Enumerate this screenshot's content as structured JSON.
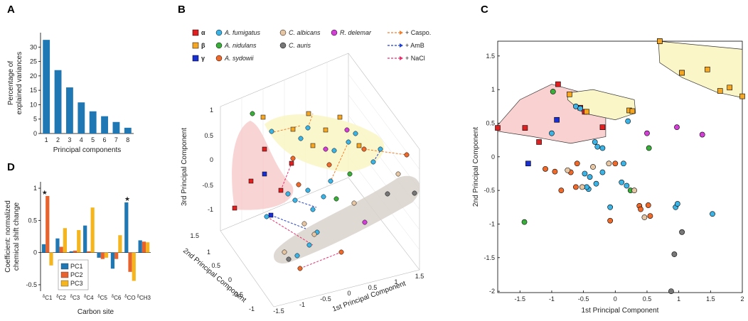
{
  "chart_data": [
    {
      "panel": "A",
      "type": "bar",
      "categories": [
        "1",
        "2",
        "3",
        "4",
        "5",
        "6",
        "7",
        "8"
      ],
      "values": [
        32.5,
        22,
        16,
        10.8,
        7.7,
        6,
        4,
        2
      ],
      "xlabel": "Principal components",
      "ylabel": [
        "Percentage of",
        "explained variances"
      ],
      "ylim": [
        0,
        35
      ],
      "yticks": [
        0,
        5,
        10,
        15,
        20,
        25,
        30
      ],
      "color": "#1f77b4"
    },
    {
      "panel": "D",
      "type": "bar",
      "categories": [
        "δC1",
        "δC2",
        "δC3",
        "δC4",
        "δC5",
        "δC6",
        "δCO",
        "δCH3"
      ],
      "category_labels": [
        [
          "δ",
          "C1"
        ],
        [
          "δ",
          "C2"
        ],
        [
          "δ",
          "C3"
        ],
        [
          "δ",
          "C4"
        ],
        [
          "δ",
          "C5"
        ],
        [
          "δ",
          "C6"
        ],
        [
          "δ",
          "CO"
        ],
        [
          "δ",
          "CH3"
        ]
      ],
      "series": [
        {
          "name": "PC1",
          "color": "#1f77b4",
          "values": [
            0.13,
            0.22,
            0.02,
            0.42,
            -0.08,
            -0.25,
            0.78,
            0.19
          ]
        },
        {
          "name": "PC2",
          "color": "#e8622d",
          "values": [
            0.88,
            0.09,
            0.03,
            0.02,
            -0.1,
            -0.1,
            -0.3,
            0.17
          ]
        },
        {
          "name": "PC3",
          "color": "#f4b51f",
          "values": [
            -0.2,
            0.38,
            0.35,
            0.7,
            -0.08,
            0.27,
            -0.44,
            0.16
          ]
        }
      ],
      "star_categories": [
        "δC1",
        "δCO"
      ],
      "star_symbol": "★",
      "xlabel": "Carbon site",
      "ylabel": [
        "Coefficient: normalized",
        "chemical shift change"
      ],
      "ylim": [
        -0.6,
        1.1
      ],
      "yticks": [
        -0.5,
        0,
        0.5,
        1
      ]
    },
    {
      "panel": "B",
      "type": "scatter",
      "projection": "3d",
      "xlabel": "1st Principal Component",
      "ylabel": "2nd Principal Component",
      "zlabel": "3rd Principal Component",
      "xticks": [
        "-1.5",
        "-1",
        "-0.5",
        "0",
        "0.5",
        "1",
        "1.5"
      ],
      "yticks": [
        "-1",
        "-0.5",
        "0",
        "0.5",
        "1",
        "1.5"
      ],
      "zticks": [
        "-1",
        "-0.5",
        "0",
        "0.5",
        "1"
      ],
      "legend": {
        "markers": [
          {
            "label": "α",
            "color": "#e02020",
            "shape": "square"
          },
          {
            "label": "β",
            "color": "#f5a623",
            "shape": "square"
          },
          {
            "label": "γ",
            "color": "#1a2fd0",
            "shape": "square"
          },
          {
            "label": "A. fumigatus",
            "color": "#3bb4e5",
            "shape": "circle"
          },
          {
            "label": "A. nidulans",
            "color": "#3aae3a",
            "shape": "circle"
          },
          {
            "label": "A. sydowii",
            "color": "#ef6a2a",
            "shape": "circle"
          },
          {
            "label": "C. albicans",
            "color": "#e7c6a4",
            "shape": "circle"
          },
          {
            "label": "C. auris",
            "color": "#777777",
            "shape": "circle"
          },
          {
            "label": "R. delemar",
            "color": "#d33fd6",
            "shape": "circle"
          }
        ],
        "lines": [
          {
            "label": "+ Caspo.",
            "color": "#f08030"
          },
          {
            "label": "+ AmB",
            "color": "#2040d0"
          },
          {
            "label": "+ NaCl",
            "color": "#e83070"
          }
        ]
      },
      "groups": {
        "red": [
          [
            -1.4,
            0.4,
            -0.9
          ],
          [
            -1.1,
            0.6,
            -0.45
          ],
          [
            -0.8,
            0.7,
            -0.1
          ],
          [
            -1.3,
            0.3,
            -0.75
          ],
          [
            -0.6,
            0.5,
            -0.65
          ]
        ],
        "blue": [
          [
            -1.2,
            0.55,
            -0.5
          ]
        ],
        "orange": [
          [
            -0.9,
            0.9,
            0.9
          ],
          [
            -0.4,
            1.1,
            1.0
          ],
          [
            -0.2,
            0.95,
            0.75
          ],
          [
            0.3,
            1.1,
            0.6
          ],
          [
            0.9,
            1.2,
            0.55
          ],
          [
            0.6,
            0.9,
            0.3
          ],
          [
            1.2,
            0.8,
            0.25
          ]
        ]
      }
    },
    {
      "panel": "C",
      "type": "scatter",
      "xlabel": "1st Principal Component",
      "ylabel": "2nd Principal Component",
      "xlim": [
        -1.85,
        2.0
      ],
      "ylim": [
        -2.02,
        1.72
      ],
      "xticks": [
        -1.5,
        -1,
        -0.5,
        0,
        0.5,
        1,
        1.5,
        2
      ],
      "yticks": [
        -2,
        -1.5,
        -1,
        -0.5,
        0,
        0.5,
        1,
        1.5
      ],
      "series": [
        {
          "name": "α",
          "color": "#e02020",
          "shape": "square",
          "points": [
            [
              -1.85,
              0.43
            ],
            [
              -1.42,
              0.43
            ],
            [
              -1.2,
              0.22
            ],
            [
              -0.9,
              1.08
            ],
            [
              -0.55,
              0.73
            ],
            [
              -0.48,
              0.67
            ],
            [
              -0.2,
              0.44
            ],
            [
              0.7,
              1.72
            ],
            [
              1.05,
              1.25
            ]
          ]
        },
        {
          "name": "β",
          "color": "#f5a623",
          "shape": "square",
          "points": [
            [
              -0.72,
              0.93
            ],
            [
              -0.45,
              0.67
            ],
            [
              0.22,
              0.69
            ],
            [
              0.27,
              0.68
            ],
            [
              0.7,
              1.72
            ],
            [
              1.05,
              1.25
            ],
            [
              1.45,
              1.3
            ],
            [
              1.65,
              0.98
            ],
            [
              1.8,
              1.03
            ],
            [
              2.0,
              0.9
            ]
          ]
        },
        {
          "name": "γ",
          "color": "#1a2fd0",
          "shape": "square",
          "points": [
            [
              -0.92,
              0.55
            ],
            [
              -1.37,
              -0.1
            ]
          ]
        },
        {
          "name": "A. fumigatus",
          "color": "#3bb4e5",
          "shape": "circle",
          "points": [
            [
              -1.0,
              0.35
            ],
            [
              -0.62,
              0.75
            ],
            [
              -0.55,
              0.72
            ],
            [
              -0.32,
              0.22
            ],
            [
              -0.28,
              0.15
            ],
            [
              -0.2,
              0.13
            ],
            [
              -0.48,
              -0.25
            ],
            [
              -0.4,
              -0.3
            ],
            [
              -0.3,
              -0.4
            ],
            [
              -0.42,
              -0.48
            ],
            [
              -0.2,
              -0.23
            ],
            [
              0.1,
              -0.38
            ],
            [
              0.18,
              -0.43
            ],
            [
              0.2,
              0.53
            ],
            [
              -0.08,
              -0.75
            ],
            [
              0.13,
              -0.1
            ],
            [
              0.95,
              -0.75
            ],
            [
              0.98,
              -0.7
            ],
            [
              1.53,
              -0.85
            ],
            [
              -0.45,
              -0.45
            ]
          ]
        },
        {
          "name": "A. nidulans",
          "color": "#3aae3a",
          "shape": "circle",
          "points": [
            [
              -0.98,
              0.97
            ],
            [
              0.24,
              -0.5
            ],
            [
              0.53,
              0.13
            ],
            [
              -1.43,
              -0.97
            ]
          ]
        },
        {
          "name": "A. sydowii",
          "color": "#ef6a2a",
          "shape": "circle",
          "points": [
            [
              -1.1,
              -0.18
            ],
            [
              -0.95,
              -0.22
            ],
            [
              -0.85,
              -0.5
            ],
            [
              -0.7,
              -0.23
            ],
            [
              -0.6,
              -0.1
            ],
            [
              0.0,
              -0.1
            ],
            [
              0.38,
              -0.73
            ],
            [
              0.52,
              -0.72
            ],
            [
              0.4,
              -0.78
            ],
            [
              0.55,
              -0.88
            ],
            [
              -0.62,
              -0.45
            ],
            [
              -0.08,
              -0.95
            ]
          ]
        },
        {
          "name": "C. albicans",
          "color": "#e7c6a4",
          "shape": "circle",
          "points": [
            [
              -0.75,
              -0.2
            ],
            [
              -0.35,
              -0.15
            ],
            [
              -0.1,
              -0.1
            ],
            [
              0.3,
              -0.5
            ],
            [
              0.46,
              -0.9
            ],
            [
              -0.52,
              -0.45
            ]
          ]
        },
        {
          "name": "C. auris",
          "color": "#777777",
          "shape": "circle",
          "points": [
            [
              0.93,
              -1.45
            ],
            [
              1.05,
              -1.12
            ],
            [
              0.88,
              -2.0
            ]
          ]
        },
        {
          "name": "R. delemar",
          "color": "#d33fd6",
          "shape": "circle",
          "points": [
            [
              0.5,
              0.35
            ],
            [
              0.97,
              0.44
            ],
            [
              1.37,
              0.33
            ]
          ]
        }
      ]
    }
  ],
  "panels": {
    "A": "A",
    "B": "B",
    "C": "C",
    "D": "D"
  }
}
